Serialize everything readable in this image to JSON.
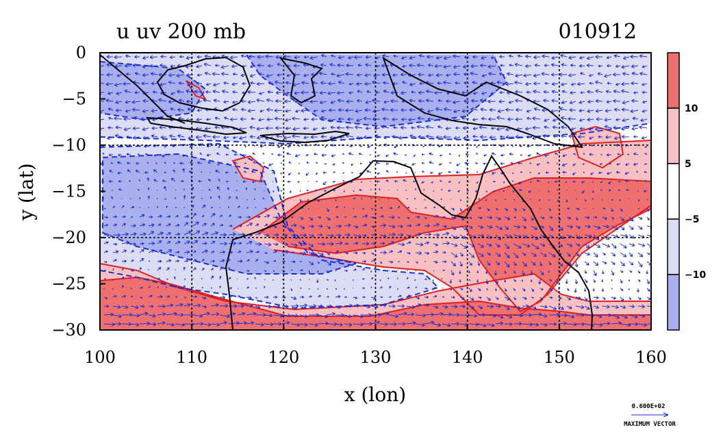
{
  "chart_data": {
    "type": "heatmap",
    "title_left": "u uv 200 mb",
    "title_right": "010912",
    "xlabel": "x (lon)",
    "ylabel": "y (lat)",
    "xlim": [
      100,
      160
    ],
    "ylim": [
      -30,
      0
    ],
    "x_ticks": [
      "100",
      "110",
      "120",
      "130",
      "140",
      "150",
      "160"
    ],
    "y_ticks": [
      "0",
      "−5",
      "−10",
      "−15",
      "−20",
      "−25",
      "−30"
    ],
    "grid": true,
    "colorbar": {
      "labels": [
        "10",
        "5",
        "−5",
        "−10"
      ],
      "bins": [
        {
          "range": [
            10,
            15
          ],
          "color": "#f07070"
        },
        {
          "range": [
            5,
            10
          ],
          "color": "#f8c0c0"
        },
        {
          "range": [
            -5,
            5
          ],
          "color": "#ffffff"
        },
        {
          "range": [
            -10,
            -5
          ],
          "color": "#dcdcf5"
        },
        {
          "range": [
            -15,
            -10
          ],
          "color": "#aab0ee"
        }
      ]
    },
    "vector_key": {
      "value_label": "0.600E+02",
      "label": "MAXIMUM VECTOR"
    }
  }
}
